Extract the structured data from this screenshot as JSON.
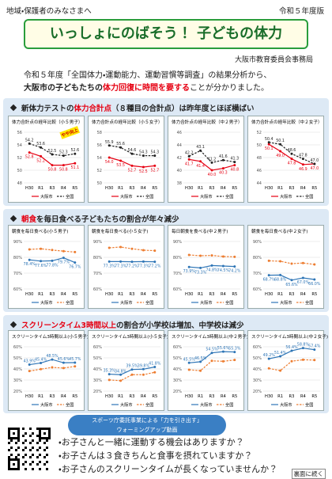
{
  "header": {
    "audience": "地域・保護者のみなさまへ",
    "edition": "令和５年度版",
    "title": "いっしょにのばそう！ 子どもの体力",
    "org": "大阪市教育委員会事務局"
  },
  "intro": {
    "line1": "令和５年度「全国体力・運動能力、運動習慣等調査」の結果分析から、",
    "bold": "大阪市の子どもたちの",
    "red": "体力回復に時間を要する",
    "tail": "ことが分かりました。"
  },
  "sections": [
    {
      "pre": "新体力テストの",
      "em": "体力合計点",
      "post": "（８種目の合計点）は昨年度とほぼ横ばい"
    },
    {
      "em": "朝食",
      "post": "を毎日食べる子どもたちの割合が年々減少"
    },
    {
      "em": "スクリーンタイム3時間以上",
      "post": "の割合が小学校は増加、中学校は減少"
    }
  ],
  "chart_data": [
    {
      "type": "line",
      "title": "体力合計点の経年比較（小５男子）",
      "categories": [
        "H30",
        "R1",
        "R3",
        "R4",
        "R5"
      ],
      "ylim": [
        48,
        56
      ],
      "yticks": [
        48,
        50,
        52,
        54,
        56
      ],
      "annotation": "やや向上",
      "series": [
        {
          "name": "大阪市",
          "color": "#e60012",
          "values": [
            52.8,
            52.2,
            50.8,
            50.8,
            51.1
          ],
          "value_labels": [
            "52.8",
            "52.2",
            "50.8",
            "50.8",
            "51.1"
          ]
        },
        {
          "name": "全国",
          "color": "#222222",
          "dashed": true,
          "values": [
            54.2,
            53.6,
            52.5,
            52.3,
            52.6
          ],
          "value_labels": [
            "54.2",
            "53.6",
            "52.5",
            "52.3",
            "52.6"
          ]
        }
      ]
    },
    {
      "type": "line",
      "title": "体力合計点の経年比較（小５女子）",
      "categories": [
        "H30",
        "R1",
        "R3",
        "R4",
        "R5"
      ],
      "ylim": [
        50,
        58
      ],
      "yticks": [
        50,
        52,
        54,
        56,
        58
      ],
      "series": [
        {
          "name": "大阪市",
          "color": "#e60012",
          "values": [
            54.0,
            53.5,
            52.7,
            52.5,
            52.7
          ],
          "value_labels": [
            "54.0",
            "53.5",
            "52.7",
            "52.5",
            "52.7"
          ]
        },
        {
          "name": "全国",
          "color": "#222222",
          "dashed": true,
          "values": [
            55.9,
            55.6,
            54.6,
            54.3,
            54.3
          ],
          "value_labels": [
            "55.9",
            "55.6",
            "54.6",
            "54.3",
            "54.3"
          ]
        }
      ]
    },
    {
      "type": "line",
      "title": "体力合計点の経年比較（中２男子）",
      "categories": [
        "H30",
        "R1",
        "R3",
        "R4",
        "R5"
      ],
      "ylim": [
        38,
        46
      ],
      "yticks": [
        38,
        40,
        42,
        44,
        46
      ],
      "series": [
        {
          "name": "大阪市",
          "color": "#e60012",
          "values": [
            41.7,
            41.4,
            40.0,
            40.3,
            40.8
          ],
          "value_labels": [
            "41.7",
            "41.4",
            "40.0",
            "40.3",
            "40.8"
          ]
        },
        {
          "name": "全国",
          "color": "#222222",
          "dashed": true,
          "values": [
            42.2,
            43.1,
            41.2,
            41.6,
            41.3
          ],
          "value_labels": [
            "42.2",
            "43.1",
            "41.2",
            "41.6",
            "41.3"
          ]
        }
      ]
    },
    {
      "type": "line",
      "title": "体力合計点の経年比較（中２女子）",
      "categories": [
        "H30",
        "R1",
        "R3",
        "R4",
        "R5"
      ],
      "ylim": [
        44,
        52
      ],
      "yticks": [
        44,
        46,
        48,
        50,
        52
      ],
      "series": [
        {
          "name": "大阪市",
          "color": "#e60012",
          "values": [
            50.1,
            49.0,
            47.8,
            46.9,
            47.0
          ],
          "value_labels": [
            "50.1",
            "49.0",
            "47.8",
            "46.9",
            "47.0"
          ]
        },
        {
          "name": "全国",
          "color": "#222222",
          "dashed": true,
          "values": [
            50.4,
            50.1,
            48.6,
            47.8,
            47.0
          ],
          "value_labels": [
            "50.4",
            "50.1",
            "48.6",
            "47.8",
            "47.0"
          ]
        }
      ]
    },
    {
      "type": "line",
      "title": "朝食を毎日食べる(小５男子)",
      "categories": [
        "H30",
        "R1",
        "R3",
        "R4",
        "R5"
      ],
      "ylim": [
        60,
        90
      ],
      "yticks": [
        {
          "value": 60,
          "label": "60%"
        },
        {
          "value": 70,
          "label": "70%"
        },
        {
          "value": 80,
          "label": "80%"
        },
        {
          "value": 90,
          "label": "90%"
        }
      ],
      "series": [
        {
          "name": "大阪市",
          "color": "#2e75b6",
          "values": [
            78.4,
            77.6,
            77.8,
            79.7,
            76.7
          ],
          "value_labels": [
            "78.4%",
            "77.6%",
            "77.8%",
            "79.7%",
            "76.7%"
          ]
        },
        {
          "name": "全国",
          "color": "#ed7d31",
          "dashed": true,
          "values": [
            85.0,
            85.4,
            84.6,
            83.9,
            83.3
          ]
        }
      ]
    },
    {
      "type": "line",
      "title": "朝食を毎日食べる(小５女子)",
      "categories": [
        "H30",
        "R1",
        "R3",
        "R4",
        "R5"
      ],
      "ylim": [
        60,
        90
      ],
      "yticks": [
        {
          "value": 60,
          "label": "60%"
        },
        {
          "value": 70,
          "label": "70%"
        },
        {
          "value": 80,
          "label": "80%"
        },
        {
          "value": 90,
          "label": "90%"
        }
      ],
      "series": [
        {
          "name": "大阪市",
          "color": "#2e75b6",
          "values": [
            77.3,
            77.3,
            77.2,
            77.3,
            77.2
          ],
          "value_labels": [
            "77.3%",
            "77.3%",
            "77.2%",
            "77.3%",
            "77.2%"
          ]
        },
        {
          "name": "全国",
          "color": "#ed7d31",
          "dashed": true,
          "values": [
            86.0,
            86.5,
            85.4,
            84.5,
            84.2
          ]
        }
      ]
    },
    {
      "type": "line",
      "title": "毎日朝食を食べる(中２男子)",
      "categories": [
        "H30",
        "R1",
        "R3",
        "R4",
        "R5"
      ],
      "ylim": [
        60,
        90
      ],
      "yticks": [
        {
          "value": 60,
          "label": "60%"
        },
        {
          "value": 70,
          "label": "70%"
        },
        {
          "value": 80,
          "label": "80%"
        },
        {
          "value": 90,
          "label": "90%"
        }
      ],
      "series": [
        {
          "name": "大阪市",
          "color": "#2e75b6",
          "values": [
            73.9,
            73.3,
            74.8,
            74.5,
            74.2
          ],
          "value_labels": [
            "73.9%",
            "73.3%",
            "74.8%",
            "74.5%",
            "74.2%"
          ]
        },
        {
          "name": "全国",
          "color": "#ed7d31",
          "dashed": true,
          "values": [
            81.5,
            81.0,
            81.2,
            80.5,
            80.3
          ]
        }
      ]
    },
    {
      "type": "line",
      "title": "朝食を毎日食べる(中２女子)",
      "categories": [
        "H30",
        "R1",
        "R3",
        "R4",
        "R5"
      ],
      "ylim": [
        60,
        90
      ],
      "yticks": [
        {
          "value": 60,
          "label": "60%"
        },
        {
          "value": 70,
          "label": "70%"
        },
        {
          "value": 80,
          "label": "80%"
        },
        {
          "value": 90,
          "label": "90%"
        }
      ],
      "series": [
        {
          "name": "大阪市",
          "color": "#2e75b6",
          "values": [
            68.7,
            68.8,
            65.6,
            67.0,
            66.0
          ],
          "value_labels": [
            "68.7%",
            "68.8%",
            "65.6%",
            "67.0%",
            "66.0%"
          ]
        },
        {
          "name": "全国",
          "color": "#ed7d31",
          "dashed": true,
          "values": [
            77.8,
            77.5,
            76.0,
            76.4,
            75.5
          ]
        }
      ]
    },
    {
      "type": "line",
      "title": "スクリーンタイム3時間以上(小５男子)",
      "categories": [
        "H30",
        "R1",
        "R3",
        "R4",
        "R5"
      ],
      "ylim": [
        20,
        60
      ],
      "yticks": [
        {
          "value": 20,
          "label": "20%"
        },
        {
          "value": 30,
          "label": "30%"
        },
        {
          "value": 40,
          "label": "40%"
        },
        {
          "value": 50,
          "label": "50%"
        },
        {
          "value": 60,
          "label": "60%"
        }
      ],
      "series": [
        {
          "name": "大阪市",
          "color": "#2e75b6",
          "values": [
            43.9,
            45.4,
            48.5,
            45.6,
            45.7
          ],
          "value_labels": [
            "43.9%",
            "45.4%",
            "48.5%",
            "45.6%",
            "45.7%"
          ]
        },
        {
          "name": "全国",
          "color": "#ed7d31",
          "dashed": true,
          "values": [
            38.1,
            39.8,
            41.4,
            40.8,
            42.3
          ]
        }
      ]
    },
    {
      "type": "line",
      "title": "スクリーンタイム3時間以上(小５女子)",
      "categories": [
        "H30",
        "R1",
        "R3",
        "R4",
        "R5"
      ],
      "ylim": [
        20,
        60
      ],
      "yticks": [
        {
          "value": 20,
          "label": "20%"
        },
        {
          "value": 30,
          "label": "30%"
        },
        {
          "value": 40,
          "label": "40%"
        },
        {
          "value": 50,
          "label": "50%"
        },
        {
          "value": 60,
          "label": "60%"
        }
      ],
      "series": [
        {
          "name": "大阪市",
          "color": "#2e75b6",
          "values": [
            35.3,
            34.8,
            39.5,
            39.8,
            41.8
          ],
          "value_labels": [
            "35.3%",
            "34.8%",
            "39.5%",
            "39.8%",
            "41.8%"
          ]
        },
        {
          "name": "全国",
          "color": "#ed7d31",
          "dashed": true,
          "values": [
            30.1,
            29.4,
            34.8,
            34.8,
            37.0
          ]
        }
      ]
    },
    {
      "type": "line",
      "title": "スクリーンタイム3時間以上(中２男子)",
      "categories": [
        "H30",
        "R1",
        "R3",
        "R4",
        "R5"
      ],
      "ylim": [
        20,
        60
      ],
      "yticks": [
        {
          "value": 20,
          "label": "20%"
        },
        {
          "value": 30,
          "label": "30%"
        },
        {
          "value": 40,
          "label": "40%"
        },
        {
          "value": 50,
          "label": "50%"
        },
        {
          "value": 60,
          "label": "60%"
        }
      ],
      "series": [
        {
          "name": "大阪市",
          "color": "#2e75b6",
          "values": [
            45.5,
            46.5,
            54.5,
            55.6,
            55.3
          ],
          "value_labels": [
            "45.5%",
            "46.5%",
            "54.5%",
            "55.6%",
            "55.3%"
          ]
        },
        {
          "name": "全国",
          "color": "#ed7d31",
          "dashed": true,
          "values": [
            39.3,
            38.4,
            47.3,
            46.9,
            48.1
          ]
        }
      ]
    },
    {
      "type": "line",
      "title": "スクリーンタイム3時間以上(中２女子)",
      "categories": [
        "H30",
        "R1",
        "R3",
        "R4",
        "R5"
      ],
      "ylim": [
        20,
        60
      ],
      "yticks": [
        {
          "value": 20,
          "label": "20%"
        },
        {
          "value": 30,
          "label": "30%"
        },
        {
          "value": 40,
          "label": "40%"
        },
        {
          "value": 50,
          "label": "50%"
        },
        {
          "value": 60,
          "label": "60%"
        }
      ],
      "series": [
        {
          "name": "大阪市",
          "color": "#2e75b6",
          "values": [
            49.2,
            51.4,
            56.4,
            58.8,
            57.4
          ],
          "value_labels": [
            "49.2%",
            "51.4%",
            "56.4%",
            "58.8%",
            "57.4%"
          ]
        },
        {
          "name": "全国",
          "color": "#ed7d31",
          "dashed": true,
          "values": [
            40.5,
            38.5,
            47.0,
            48.3,
            48.0
          ]
        }
      ]
    }
  ],
  "footer": {
    "video1": "スポーツ庁委託事業による「力を引き出す」",
    "video2": "ウォーミングアップ動画",
    "questions": [
      "・お子さんと一緒に運動する機会はありますか？",
      "・お子さんは３食きちんと食事を摂れていますか？",
      "・お子さんのスクリーンタイムが長くなっていませんか？"
    ],
    "continued": "裏面に続く"
  }
}
